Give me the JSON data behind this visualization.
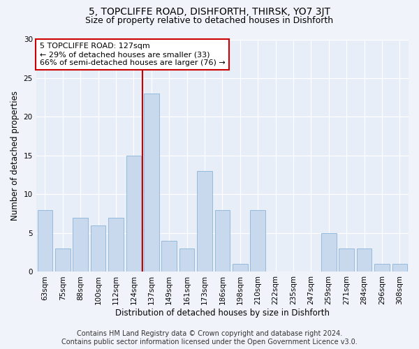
{
  "title": "5, TOPCLIFFE ROAD, DISHFORTH, THIRSK, YO7 3JT",
  "subtitle": "Size of property relative to detached houses in Dishforth",
  "xlabel": "Distribution of detached houses by size in Dishforth",
  "ylabel": "Number of detached properties",
  "footer_line1": "Contains HM Land Registry data © Crown copyright and database right 2024.",
  "footer_line2": "Contains public sector information licensed under the Open Government Licence v3.0.",
  "categories": [
    "63sqm",
    "75sqm",
    "88sqm",
    "100sqm",
    "112sqm",
    "124sqm",
    "137sqm",
    "149sqm",
    "161sqm",
    "173sqm",
    "186sqm",
    "198sqm",
    "210sqm",
    "222sqm",
    "235sqm",
    "247sqm",
    "259sqm",
    "271sqm",
    "284sqm",
    "296sqm",
    "308sqm"
  ],
  "values": [
    8,
    3,
    7,
    6,
    7,
    15,
    23,
    4,
    3,
    13,
    8,
    1,
    8,
    0,
    0,
    0,
    5,
    3,
    3,
    1,
    1
  ],
  "bar_color": "#c8d9ee",
  "bar_edgecolor": "#8ab4d9",
  "highlight_index": 5,
  "highlight_line_color": "#cc0000",
  "annotation_line1": "5 TOPCLIFFE ROAD: 127sqm",
  "annotation_line2": "← 29% of detached houses are smaller (33)",
  "annotation_line3": "66% of semi-detached houses are larger (76) →",
  "annotation_box_edgecolor": "#cc0000",
  "annotation_box_facecolor": "#ffffff",
  "ylim": [
    0,
    30
  ],
  "yticks": [
    0,
    5,
    10,
    15,
    20,
    25,
    30
  ],
  "background_color": "#f0f4fa",
  "plot_bg_color": "#e8eef8",
  "title_fontsize": 10,
  "subtitle_fontsize": 9,
  "axis_label_fontsize": 8.5,
  "tick_fontsize": 7.5,
  "annotation_fontsize": 8,
  "footer_fontsize": 7
}
